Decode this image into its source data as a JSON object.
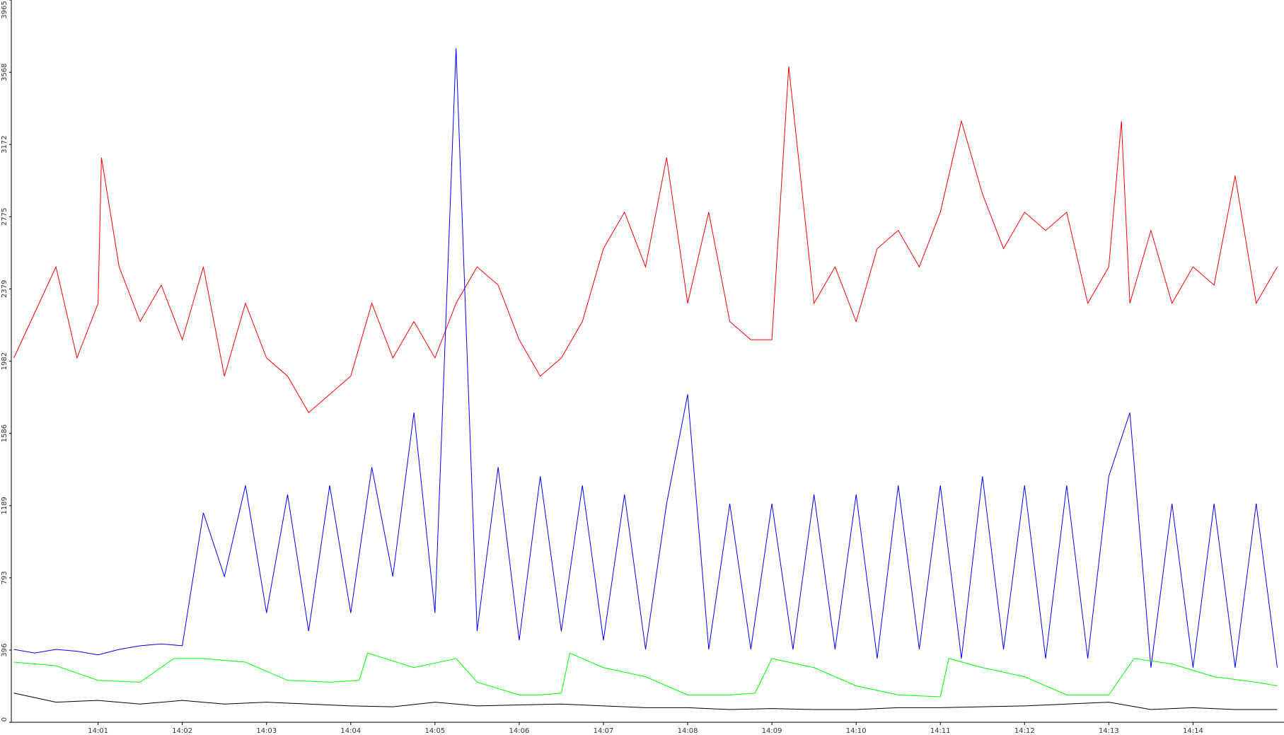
{
  "chart_data": {
    "type": "line",
    "xlim": [
      -0.03,
      15.08
    ],
    "ylim": [
      0,
      3965
    ],
    "xticks": [
      {
        "value": 1,
        "label": "14:01"
      },
      {
        "value": 2,
        "label": "14:02"
      },
      {
        "value": 3,
        "label": "14:03"
      },
      {
        "value": 4,
        "label": "14:04"
      },
      {
        "value": 5,
        "label": "14:05"
      },
      {
        "value": 6,
        "label": "14:06"
      },
      {
        "value": 7,
        "label": "14:07"
      },
      {
        "value": 8,
        "label": "14:08"
      },
      {
        "value": 9,
        "label": "14:09"
      },
      {
        "value": 10,
        "label": "14:10"
      },
      {
        "value": 11,
        "label": "14:11"
      },
      {
        "value": 12,
        "label": "14:12"
      },
      {
        "value": 13,
        "label": "14:13"
      },
      {
        "value": 14,
        "label": "14:14"
      }
    ],
    "yticks": [
      0,
      396,
      793,
      1189,
      1586,
      1982,
      2379,
      2775,
      3172,
      3568,
      3965
    ],
    "series": [
      {
        "color": "#ff0000",
        "x": [
          0,
          0.25,
          0.5,
          0.75,
          1.0,
          1.04,
          1.25,
          1.5,
          1.75,
          2.0,
          2.25,
          2.5,
          2.75,
          3.0,
          3.25,
          3.5,
          3.75,
          4.0,
          4.25,
          4.5,
          4.75,
          5.0,
          5.25,
          5.5,
          5.75,
          6.0,
          6.25,
          6.5,
          6.75,
          7.0,
          7.25,
          7.5,
          7.75,
          8.0,
          8.25,
          8.5,
          8.75,
          9.0,
          9.2,
          9.5,
          9.75,
          10.0,
          10.25,
          10.5,
          10.75,
          11.0,
          11.25,
          11.5,
          11.75,
          12.0,
          12.25,
          12.5,
          12.75,
          13.0,
          13.15,
          13.25,
          13.5,
          13.75,
          14.0,
          14.25,
          14.5,
          14.75,
          15.0
        ],
        "values": [
          2000,
          2250,
          2500,
          2000,
          2300,
          3100,
          2500,
          2200,
          2400,
          2100,
          2500,
          1900,
          2300,
          2000,
          1900,
          1700,
          1800,
          1900,
          2300,
          2000,
          2200,
          2000,
          2300,
          2500,
          2400,
          2100,
          1900,
          2000,
          2200,
          2600,
          2800,
          2500,
          3100,
          2300,
          2800,
          2200,
          2100,
          2100,
          3600,
          2300,
          2500,
          2200,
          2600,
          2700,
          2500,
          2800,
          3300,
          2900,
          2600,
          2800,
          2700,
          2800,
          2300,
          2500,
          3300,
          2300,
          2700,
          2300,
          2500,
          2400,
          3000,
          2300,
          2500
        ]
      },
      {
        "color": "#0000ff",
        "x": [
          0,
          0.25,
          0.5,
          0.75,
          1.0,
          1.25,
          1.5,
          1.75,
          2.0,
          2.25,
          2.5,
          2.75,
          3.0,
          3.25,
          3.5,
          3.75,
          4.0,
          4.25,
          4.5,
          4.75,
          5.0,
          5.25,
          5.5,
          5.75,
          6.0,
          6.25,
          6.5,
          6.75,
          7.0,
          7.25,
          7.5,
          7.75,
          8.0,
          8.25,
          8.5,
          8.75,
          9.0,
          9.25,
          9.5,
          9.75,
          10.0,
          10.25,
          10.5,
          10.75,
          11.0,
          11.25,
          11.5,
          11.75,
          12.0,
          12.25,
          12.5,
          12.75,
          13.0,
          13.25,
          13.5,
          13.75,
          14.0,
          14.25,
          14.5,
          14.75,
          15.0
        ],
        "values": [
          400,
          380,
          400,
          390,
          370,
          400,
          420,
          430,
          420,
          1150,
          800,
          1300,
          600,
          1250,
          500,
          1300,
          600,
          1400,
          800,
          1700,
          600,
          3700,
          500,
          1400,
          450,
          1350,
          500,
          1300,
          450,
          1250,
          400,
          1200,
          1800,
          400,
          1200,
          400,
          1200,
          400,
          1250,
          400,
          1250,
          350,
          1300,
          400,
          1300,
          350,
          1350,
          400,
          1300,
          350,
          1300,
          350,
          1350,
          1700,
          300,
          1200,
          300,
          1200,
          300,
          1200,
          300
        ]
      },
      {
        "color": "#00ff00",
        "x": [
          0,
          0.5,
          1.0,
          1.5,
          1.9,
          2.25,
          2.75,
          3.25,
          3.75,
          4.1,
          4.2,
          4.75,
          5.25,
          5.5,
          6.0,
          6.25,
          6.5,
          6.6,
          7.0,
          7.5,
          8.0,
          8.5,
          8.8,
          9.0,
          9.5,
          10.0,
          10.5,
          11.0,
          11.1,
          11.5,
          12.0,
          12.5,
          13.0,
          13.3,
          13.75,
          14.25,
          14.75,
          15.0
        ],
        "values": [
          330,
          310,
          230,
          220,
          350,
          350,
          330,
          230,
          220,
          230,
          380,
          300,
          350,
          220,
          150,
          150,
          160,
          380,
          300,
          250,
          150,
          150,
          160,
          350,
          300,
          200,
          150,
          140,
          350,
          300,
          250,
          150,
          150,
          350,
          320,
          250,
          220,
          200
        ]
      },
      {
        "color": "#000000",
        "x": [
          0,
          0.5,
          1.0,
          1.5,
          2.0,
          2.5,
          3.0,
          3.5,
          4.0,
          4.5,
          5.0,
          5.5,
          6.0,
          6.5,
          7.0,
          7.5,
          8.0,
          8.5,
          9.0,
          9.5,
          10.0,
          10.5,
          11.0,
          11.5,
          12.0,
          12.5,
          13.0,
          13.5,
          14.0,
          14.5,
          15.0
        ],
        "values": [
          160,
          110,
          120,
          100,
          120,
          100,
          110,
          100,
          90,
          85,
          110,
          90,
          95,
          100,
          90,
          80,
          80,
          70,
          75,
          70,
          70,
          80,
          80,
          85,
          90,
          100,
          110,
          70,
          80,
          70,
          70
        ]
      }
    ]
  }
}
